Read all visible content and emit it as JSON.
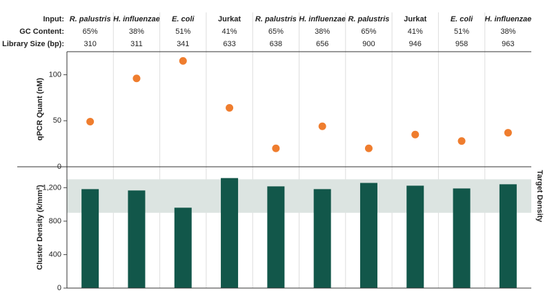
{
  "table": {
    "rows": [
      {
        "label": "Input:",
        "cells": [
          "R. palustris",
          "H. influenzae",
          "E. coli",
          "Jurkat",
          "R. palustris",
          "H. influenzae",
          "R. palustris",
          "Jurkat",
          "E. coli",
          "H. influenzae"
        ],
        "italic": [
          true,
          true,
          true,
          false,
          true,
          true,
          true,
          false,
          true,
          true
        ]
      },
      {
        "label": "GC Content:",
        "cells": [
          "65%",
          "38%",
          "51%",
          "41%",
          "65%",
          "38%",
          "65%",
          "41%",
          "51%",
          "38%"
        ]
      },
      {
        "label": "Library Size (bp):",
        "cells": [
          310,
          311,
          341,
          633,
          638,
          656,
          900,
          946,
          958,
          963
        ]
      }
    ]
  },
  "chart_data": [
    {
      "type": "scatter",
      "y_label": "qPCR Quant (nM)",
      "color": "#ef7d2e",
      "values": [
        49,
        96,
        115,
        64,
        20,
        44,
        20,
        35,
        28,
        37
      ],
      "ylim": [
        0,
        125
      ],
      "yticks": [
        0,
        50,
        100
      ]
    },
    {
      "type": "bar",
      "y_label": "Cluster Density (k/mm²)",
      "color": "#12574a",
      "values": [
        1183,
        1167,
        961,
        1315,
        1216,
        1183,
        1257,
        1224,
        1191,
        1241
      ],
      "ylim": [
        0,
        1450
      ],
      "yticks": [
        0,
        400,
        800,
        {
          "value": 1200,
          "label": "1,200"
        }
      ],
      "band": {
        "from": 900,
        "to": 1300,
        "label": "Target Density",
        "color": "#dce4e1"
      }
    }
  ]
}
